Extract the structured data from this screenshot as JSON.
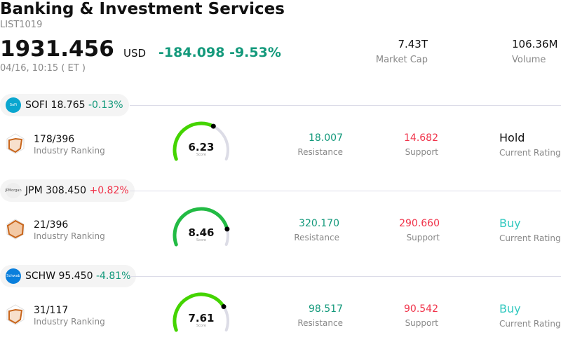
{
  "header": {
    "title": "Banking & Investment Services",
    "code": "LIST1019",
    "price": "1931.456",
    "currency": "USD",
    "change": "-184.098",
    "change_pct": "-9.53%",
    "time": "04/16, 10:15  ( ET )",
    "market_cap": "7.43T",
    "market_cap_label": "Market Cap",
    "volume": "106.36M",
    "volume_label": "Volume"
  },
  "colors": {
    "down": "#13997b",
    "up": "#f0334a",
    "buy": "#33c9c0"
  },
  "stocks": [
    {
      "ticker": "SOFI",
      "price": "18.765",
      "change": "-0.13%",
      "dir": "down",
      "logo_color": "#0aa6cf",
      "logo_text": "SoFi",
      "rank": "178/396",
      "rank_label": "Industry Ranking",
      "score": "6.23",
      "score_value": 6.23,
      "score_label": "Score",
      "gauge_color": "#44d400",
      "resistance": "18.007",
      "resistance_label": "Resistance",
      "support": "14.682",
      "support_label": "Support",
      "rating": "Hold",
      "rating_label": "Current Rating"
    },
    {
      "ticker": "JPM",
      "price": "308.450",
      "change": "+0.82%",
      "dir": "up",
      "logo_color": "#eeeeee",
      "logo_text": "JPMorgan",
      "rank": "21/396",
      "rank_label": "Industry Ranking",
      "score": "8.46",
      "score_value": 8.46,
      "score_label": "Score",
      "gauge_color": "#22bb44",
      "resistance": "320.170",
      "resistance_label": "Resistance",
      "support": "290.660",
      "support_label": "Support",
      "rating": "Buy",
      "rating_label": "Current Rating"
    },
    {
      "ticker": "SCHW",
      "price": "95.450",
      "change": "-4.81%",
      "dir": "down",
      "logo_color": "#0a7fdc",
      "logo_text": "Schwab",
      "rank": "31/117",
      "rank_label": "Industry Ranking",
      "score": "7.61",
      "score_value": 7.61,
      "score_label": "Score",
      "gauge_color": "#44d400",
      "resistance": "98.517",
      "resistance_label": "Resistance",
      "support": "90.542",
      "support_label": "Support",
      "rating": "Buy",
      "rating_label": "Current Rating"
    }
  ]
}
